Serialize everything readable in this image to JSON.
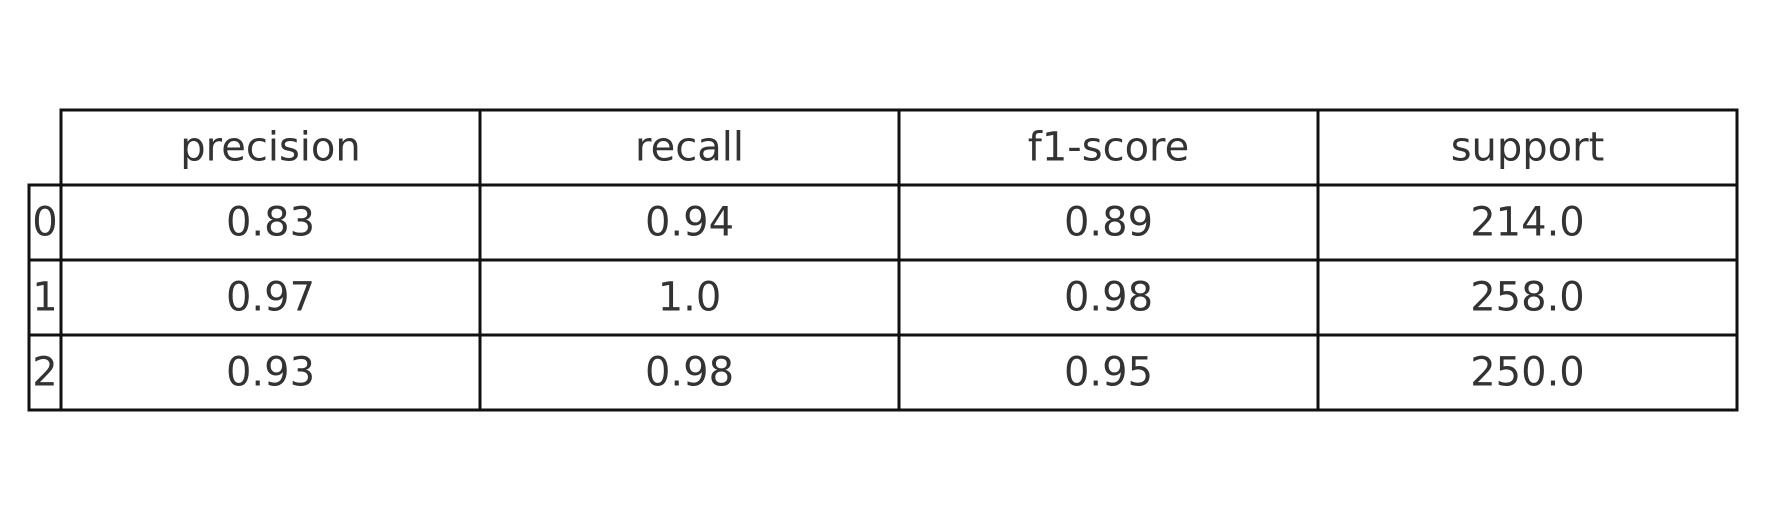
{
  "chart_data": {
    "type": "table",
    "columns": [
      "precision",
      "recall",
      "f1-score",
      "support"
    ],
    "row_labels": [
      "0",
      "1",
      "2"
    ],
    "rows": [
      [
        "0.83",
        "0.94",
        "0.89",
        "214.0"
      ],
      [
        "0.97",
        "1.0",
        "0.98",
        "258.0"
      ],
      [
        "0.93",
        "0.98",
        "0.95",
        "250.0"
      ]
    ]
  },
  "colors": {
    "border": "#111111",
    "text": "#333333",
    "background": "#ffffff"
  }
}
